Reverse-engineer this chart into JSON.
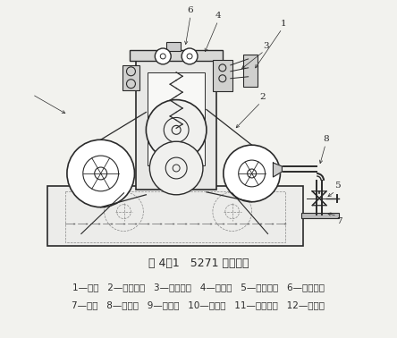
{
  "title": "图 4－1   5271 型绳洗机",
  "legend_line1": "1—机架   2—主动轧辊   3—被动轧辊   4—轧液辊   5—轧槽轧辊   6—加压装置",
  "legend_line2": "7—轧槽   8—喷水管   9—进布圈   10—出布圈   11—传动装置   12—分布棒",
  "bg_color": "#f2f2ee",
  "line_color": "#2a2a2a",
  "title_fontsize": 9,
  "legend_fontsize": 7.5
}
